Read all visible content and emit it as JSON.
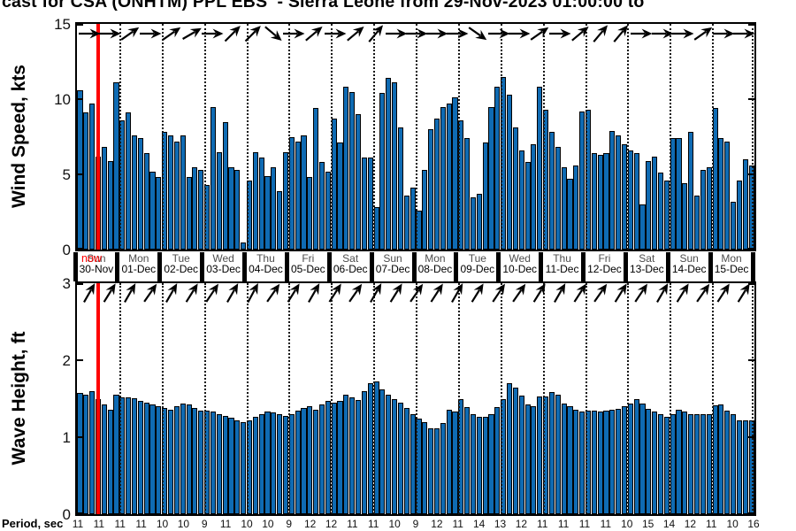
{
  "title": {
    "visible_text": "cast for CSA (ONHTM) PPL EBS  - Sierra Leone from 29-Nov-2023 01:00:00 to"
  },
  "colors": {
    "bar_fill": "#0f6bb3",
    "bar_edge": "#000000",
    "now_line": "#ff0000",
    "gridline": "#161616",
    "day_name_text": "#4d4d4d",
    "date_text": "#000000"
  },
  "now_marker": {
    "label": "now"
  },
  "x_axis": {
    "days": [
      {
        "dow": "Sun",
        "date": "30-Nov"
      },
      {
        "dow": "Mon",
        "date": "01-Dec"
      },
      {
        "dow": "Tue",
        "date": "02-Dec"
      },
      {
        "dow": "Wed",
        "date": "03-Dec"
      },
      {
        "dow": "Thu",
        "date": "04-Dec"
      },
      {
        "dow": "Fri",
        "date": "05-Dec"
      },
      {
        "dow": "Sat",
        "date": "06-Dec"
      },
      {
        "dow": "Sun",
        "date": "07-Dec"
      },
      {
        "dow": "Mon",
        "date": "08-Dec"
      },
      {
        "dow": "Tue",
        "date": "09-Dec"
      },
      {
        "dow": "Wed",
        "date": "10-Dec"
      },
      {
        "dow": "Thu",
        "date": "11-Dec"
      },
      {
        "dow": "Fri",
        "date": "12-Dec"
      },
      {
        "dow": "Sat",
        "date": "13-Dec"
      },
      {
        "dow": "Sun",
        "date": "14-Dec"
      },
      {
        "dow": "Mon",
        "date": "15-Dec"
      }
    ]
  },
  "chart_data": [
    {
      "type": "bar",
      "name": "wind",
      "ylabel": "Wind Speed, kts",
      "ylim": [
        0,
        15
      ],
      "yticks": [
        0,
        5,
        10,
        15
      ],
      "grid": "vertical dotted at day boundaries",
      "values": [
        10.6,
        9.1,
        9.7,
        6.2,
        6.8,
        5.9,
        11.1,
        8.6,
        9.1,
        7.6,
        7.4,
        6.4,
        5.2,
        4.8,
        7.8,
        7.6,
        7.2,
        7.6,
        4.8,
        5.5,
        5.3,
        4.3,
        9.5,
        6.5,
        8.5,
        5.5,
        5.3,
        0.5,
        4.6,
        6.5,
        6.1,
        4.9,
        5.5,
        3.9,
        6.5,
        7.5,
        7.2,
        7.6,
        4.8,
        9.4,
        5.8,
        5.2,
        8.7,
        7.1,
        10.8,
        10.5,
        9.0,
        6.1,
        6.1,
        2.8,
        10.4,
        11.4,
        11.1,
        8.1,
        3.6,
        4.1,
        2.6,
        5.3,
        8.0,
        8.7,
        9.5,
        9.7,
        10.1,
        8.6,
        7.4,
        3.5,
        3.7,
        7.1,
        9.5,
        10.8,
        11.5,
        10.3,
        8.1,
        6.6,
        5.8,
        7.0,
        10.8,
        9.3,
        7.8,
        6.8,
        5.5,
        4.7,
        5.6,
        9.2,
        9.3,
        6.4,
        6.3,
        6.4,
        7.9,
        7.6,
        7.0,
        6.6,
        6.4,
        3.0,
        5.9,
        6.2,
        5.1,
        4.6,
        7.4,
        7.4,
        4.4,
        7.8,
        3.6,
        5.3,
        5.5,
        9.4,
        7.4,
        7.2,
        3.2,
        4.6,
        6.0,
        5.6
      ],
      "arrow_angles_deg_up_from_east": [
        0,
        0,
        35,
        0,
        35,
        30,
        0,
        45,
        45,
        -40,
        0,
        40,
        0,
        40,
        50,
        0,
        0,
        0,
        0,
        -35,
        0,
        0,
        35,
        0,
        40,
        50,
        50,
        0,
        0,
        0,
        35,
        0,
        0
      ]
    },
    {
      "type": "bar",
      "name": "wave",
      "ylabel": "Wave Height, ft",
      "ylim": [
        0,
        3
      ],
      "yticks": [
        0,
        1,
        2,
        3
      ],
      "grid": "vertical dotted at day boundaries",
      "values": [
        1.58,
        1.55,
        1.6,
        1.5,
        1.42,
        1.36,
        1.55,
        1.52,
        1.52,
        1.51,
        1.47,
        1.45,
        1.42,
        1.4,
        1.38,
        1.36,
        1.4,
        1.44,
        1.42,
        1.38,
        1.35,
        1.35,
        1.33,
        1.3,
        1.28,
        1.25,
        1.22,
        1.2,
        1.22,
        1.26,
        1.3,
        1.33,
        1.32,
        1.3,
        1.28,
        1.3,
        1.35,
        1.38,
        1.4,
        1.36,
        1.42,
        1.47,
        1.45,
        1.47,
        1.55,
        1.52,
        1.48,
        1.6,
        1.7,
        1.72,
        1.62,
        1.55,
        1.5,
        1.45,
        1.38,
        1.3,
        1.24,
        1.2,
        1.12,
        1.11,
        1.18,
        1.36,
        1.33,
        1.49,
        1.39,
        1.3,
        1.27,
        1.27,
        1.3,
        1.39,
        1.49,
        1.7,
        1.64,
        1.54,
        1.43,
        1.4,
        1.53,
        1.53,
        1.59,
        1.55,
        1.44,
        1.4,
        1.36,
        1.33,
        1.35,
        1.35,
        1.33,
        1.34,
        1.36,
        1.37,
        1.4,
        1.44,
        1.49,
        1.44,
        1.37,
        1.33,
        1.3,
        1.27,
        1.3,
        1.36,
        1.33,
        1.3,
        1.3,
        1.3,
        1.3,
        1.41,
        1.42,
        1.35,
        1.3,
        1.22,
        1.22,
        1.22
      ],
      "arrow_angles_deg_up_from_east": [
        60,
        58,
        60,
        55,
        60,
        58,
        56,
        60,
        62,
        55,
        58,
        60,
        57,
        55,
        60,
        58,
        55,
        57,
        60,
        58,
        56,
        55,
        58,
        60,
        57,
        55,
        58,
        56,
        60,
        58,
        55,
        57,
        58
      ]
    }
  ],
  "period_row": {
    "label": "Period, sec",
    "values": [
      11,
      11,
      11,
      11,
      10,
      10,
      9,
      11,
      10,
      10,
      9,
      12,
      12,
      11,
      11,
      10,
      9,
      12,
      11,
      14,
      13,
      12,
      11,
      11,
      11,
      11,
      10,
      15,
      14,
      12,
      11,
      10,
      16
    ]
  }
}
